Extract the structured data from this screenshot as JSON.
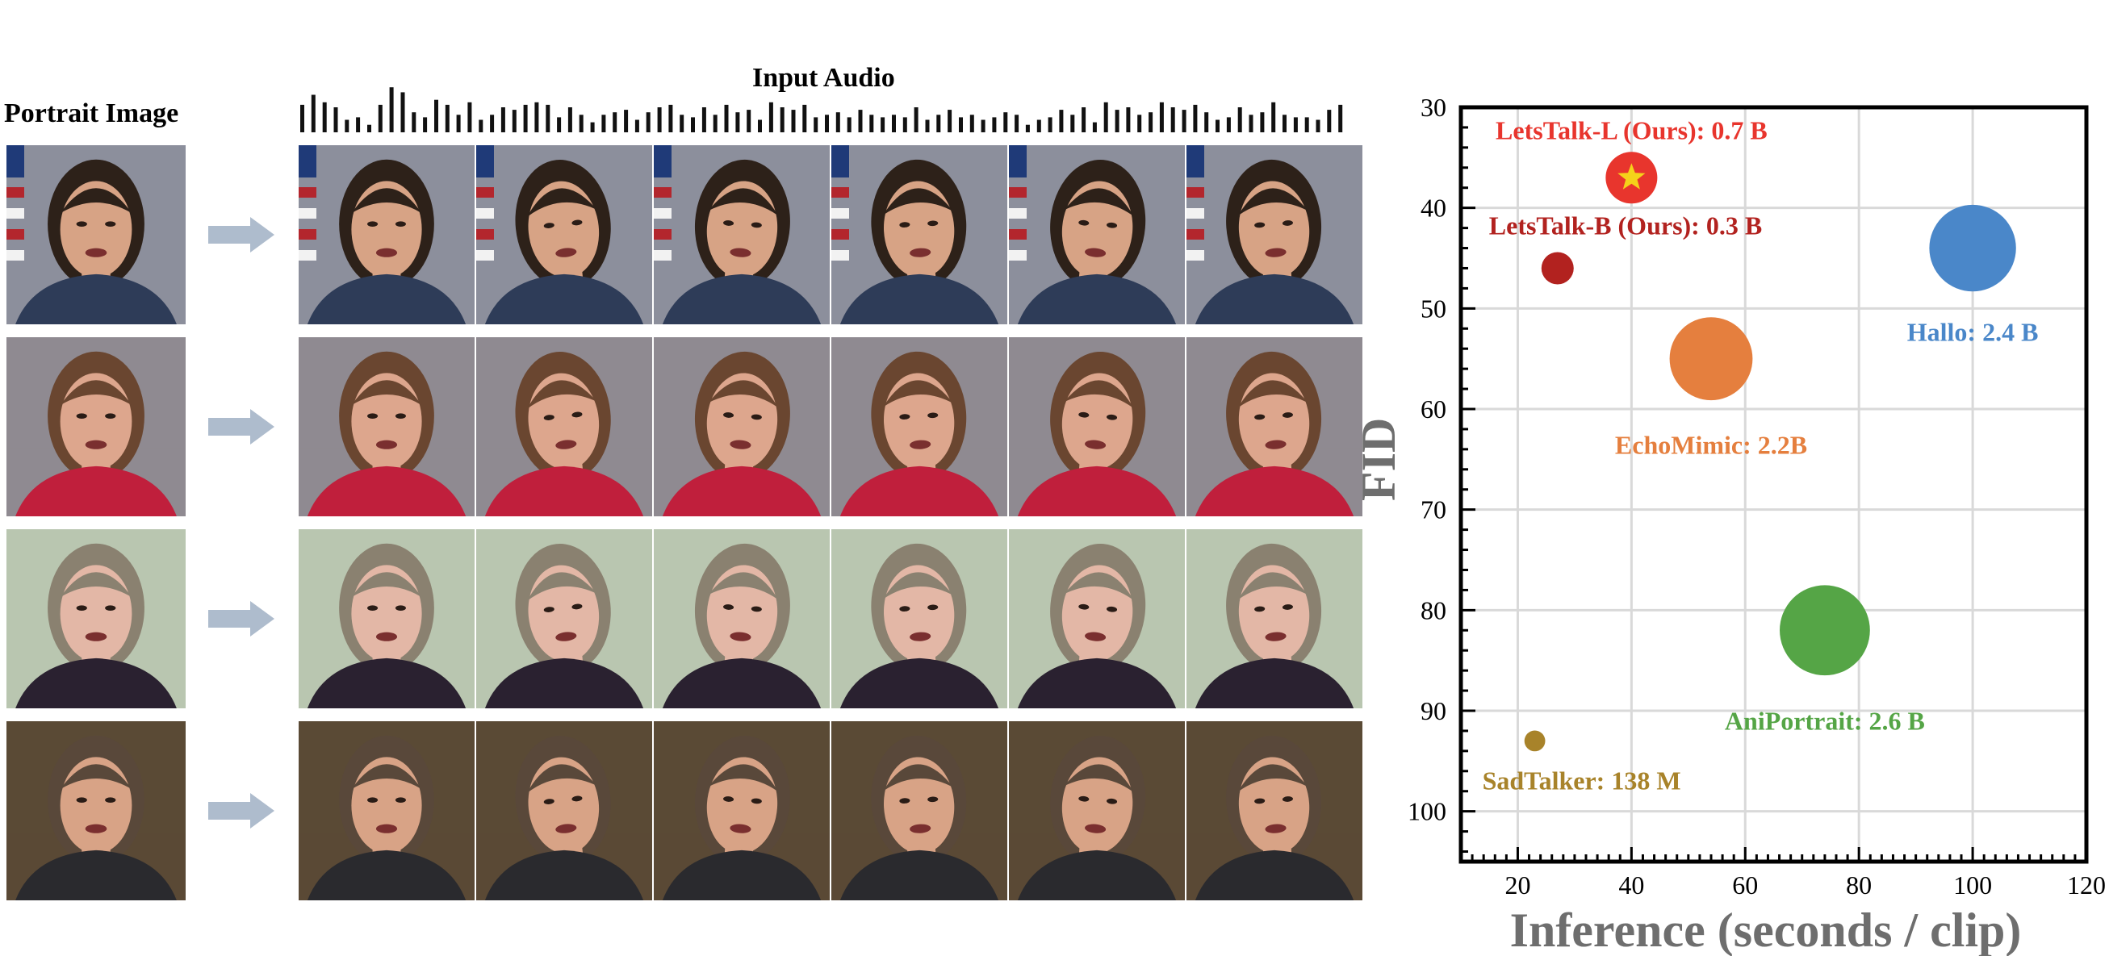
{
  "left_panel": {
    "portrait_title": "Portrait Image",
    "audio_title": "Input Audio",
    "subjects": [
      {
        "skin": "#d7a385",
        "hair": "#2d2119",
        "bg": "#8c8f9c",
        "clothes": "#2e3c58",
        "flag": true
      },
      {
        "skin": "#dda68d",
        "hair": "#6a4630",
        "bg": "#8f8a91",
        "clothes": "#c01f3c",
        "flag": false
      },
      {
        "skin": "#e3b7a6",
        "hair": "#8a8170",
        "bg": "#b9c6b0",
        "clothes": "#2a2130",
        "flag": false
      },
      {
        "skin": "#d8a386",
        "hair": "#59483a",
        "bg": "#5a4a35",
        "clothes": "#2a2a2e",
        "flag": false
      }
    ],
    "audio_levels": [
      0.55,
      0.75,
      0.6,
      0.5,
      0.25,
      0.3,
      0.15,
      0.55,
      0.9,
      0.8,
      0.4,
      0.3,
      0.65,
      0.55,
      0.35,
      0.6,
      0.25,
      0.35,
      0.5,
      0.45,
      0.55,
      0.6,
      0.55,
      0.3,
      0.5,
      0.35,
      0.2,
      0.35,
      0.4,
      0.45,
      0.25,
      0.4,
      0.5,
      0.55,
      0.35,
      0.3,
      0.5,
      0.35,
      0.55,
      0.4,
      0.45,
      0.25,
      0.6,
      0.5,
      0.45,
      0.55,
      0.3,
      0.35,
      0.4,
      0.3,
      0.45,
      0.35,
      0.3,
      0.35,
      0.3,
      0.5,
      0.25,
      0.35,
      0.45,
      0.3,
      0.35,
      0.25,
      0.3,
      0.4,
      0.35,
      0.15,
      0.25,
      0.3,
      0.45,
      0.35,
      0.5,
      0.2,
      0.6,
      0.45,
      0.5,
      0.35,
      0.4,
      0.6,
      0.5,
      0.45,
      0.55,
      0.4,
      0.25,
      0.3,
      0.5,
      0.35,
      0.4,
      0.6,
      0.35,
      0.3,
      0.3,
      0.25,
      0.45,
      0.55
    ]
  },
  "chart_data": {
    "type": "scatter",
    "xlabel": "Inference (seconds / clip)",
    "ylabel": "FID",
    "xlim": [
      10,
      120
    ],
    "ylim": [
      105,
      30
    ],
    "y_inverted": true,
    "xticks": [
      20,
      40,
      60,
      80,
      100,
      120
    ],
    "yticks": [
      30,
      40,
      50,
      60,
      70,
      80,
      90,
      100
    ],
    "grid": true,
    "points": [
      {
        "label": "LetsTalk-L (Ours): 0.7 B",
        "x": 40,
        "y": 37,
        "params_b": 0.7,
        "color": "#e8352d",
        "marker": "star"
      },
      {
        "label": "LetsTalk-B (Ours): 0.3 B",
        "x": 27,
        "y": 46,
        "params_b": 0.3,
        "color": "#b2221f"
      },
      {
        "label": "Hallo: 2.4 B",
        "x": 100,
        "y": 44,
        "params_b": 2.4,
        "color": "#4a87c9"
      },
      {
        "label": "EchoMimic: 2.2B",
        "x": 54,
        "y": 55,
        "params_b": 2.2,
        "color": "#e57f3e"
      },
      {
        "label": "AniPortrait: 2.6 B",
        "x": 74,
        "y": 82,
        "params_b": 2.6,
        "color": "#55a546"
      },
      {
        "label": "SadTalker: 138 M",
        "x": 23,
        "y": 93,
        "params_b": 0.138,
        "color": "#a8832a"
      }
    ],
    "star_color": "#f5d21a"
  }
}
